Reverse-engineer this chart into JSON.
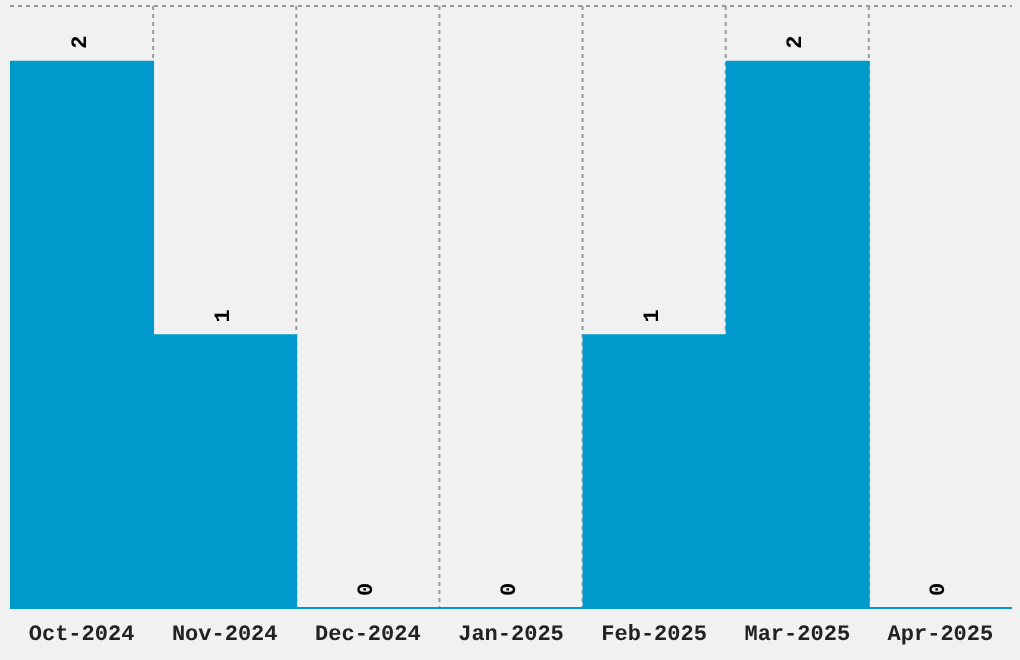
{
  "chart_data": {
    "type": "bar",
    "categories": [
      "Oct-2024",
      "Nov-2024",
      "Dec-2024",
      "Jan-2025",
      "Feb-2025",
      "Mar-2025",
      "Apr-2025"
    ],
    "values": [
      2,
      1,
      0,
      0,
      1,
      2,
      0
    ],
    "color": "#0099cc",
    "ylim": [
      0,
      2.2
    ],
    "tick_labels": "x",
    "grid": true,
    "data_labels": true
  }
}
